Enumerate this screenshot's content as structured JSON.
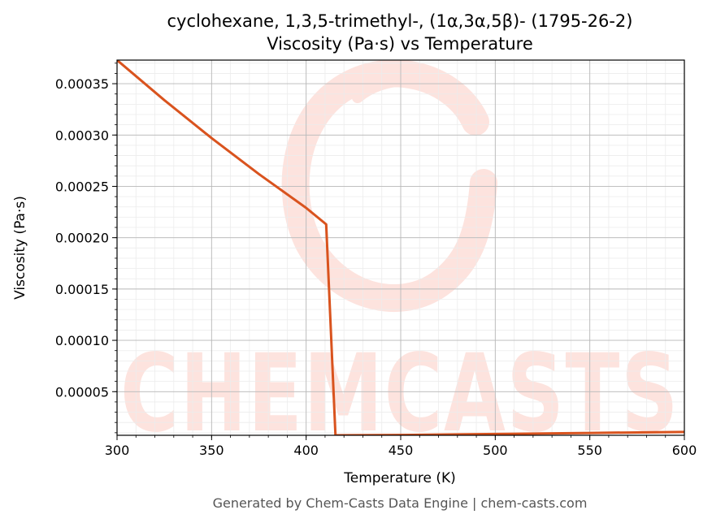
{
  "chart_data": {
    "type": "line",
    "title": "cyclohexane, 1,3,5-trimethyl-, (1α,3α,5β)- (1795-26-2)",
    "subtitle": "Viscosity (Pa·s) vs Temperature",
    "xlabel": "Temperature (K)",
    "ylabel": "Viscosity (Pa·s)",
    "xlim": [
      300,
      600
    ],
    "ylim": [
      7.5e-06,
      0.000373
    ],
    "x_ticks": [
      300,
      350,
      400,
      450,
      500,
      550,
      600
    ],
    "x_tick_labels": [
      "300",
      "350",
      "400",
      "450",
      "500",
      "550",
      "600"
    ],
    "y_ticks": [
      5e-05,
      0.0001,
      0.00015,
      0.0002,
      0.00025,
      0.0003,
      0.00035
    ],
    "y_tick_labels": [
      "0.00005",
      "0.00010",
      "0.00015",
      "0.00020",
      "0.00025",
      "0.00030",
      "0.00035"
    ],
    "grid": true,
    "line_color": "#d9531e",
    "series": [
      {
        "x": [
          300,
          325,
          350,
          375,
          400,
          410.6,
          415.5,
          450,
          500,
          550,
          600
        ],
        "values": [
          0.000373,
          0.000334,
          0.000297,
          0.000262,
          0.000229,
          0.000213,
          7.5e-06,
          7.8e-06,
          8.8e-06,
          9.8e-06,
          1.08e-05
        ]
      }
    ]
  },
  "watermark": {
    "text": "CHEMCASTS",
    "color": "#fde3de"
  },
  "footer": "Generated by Chem-Casts Data Engine | chem-casts.com"
}
